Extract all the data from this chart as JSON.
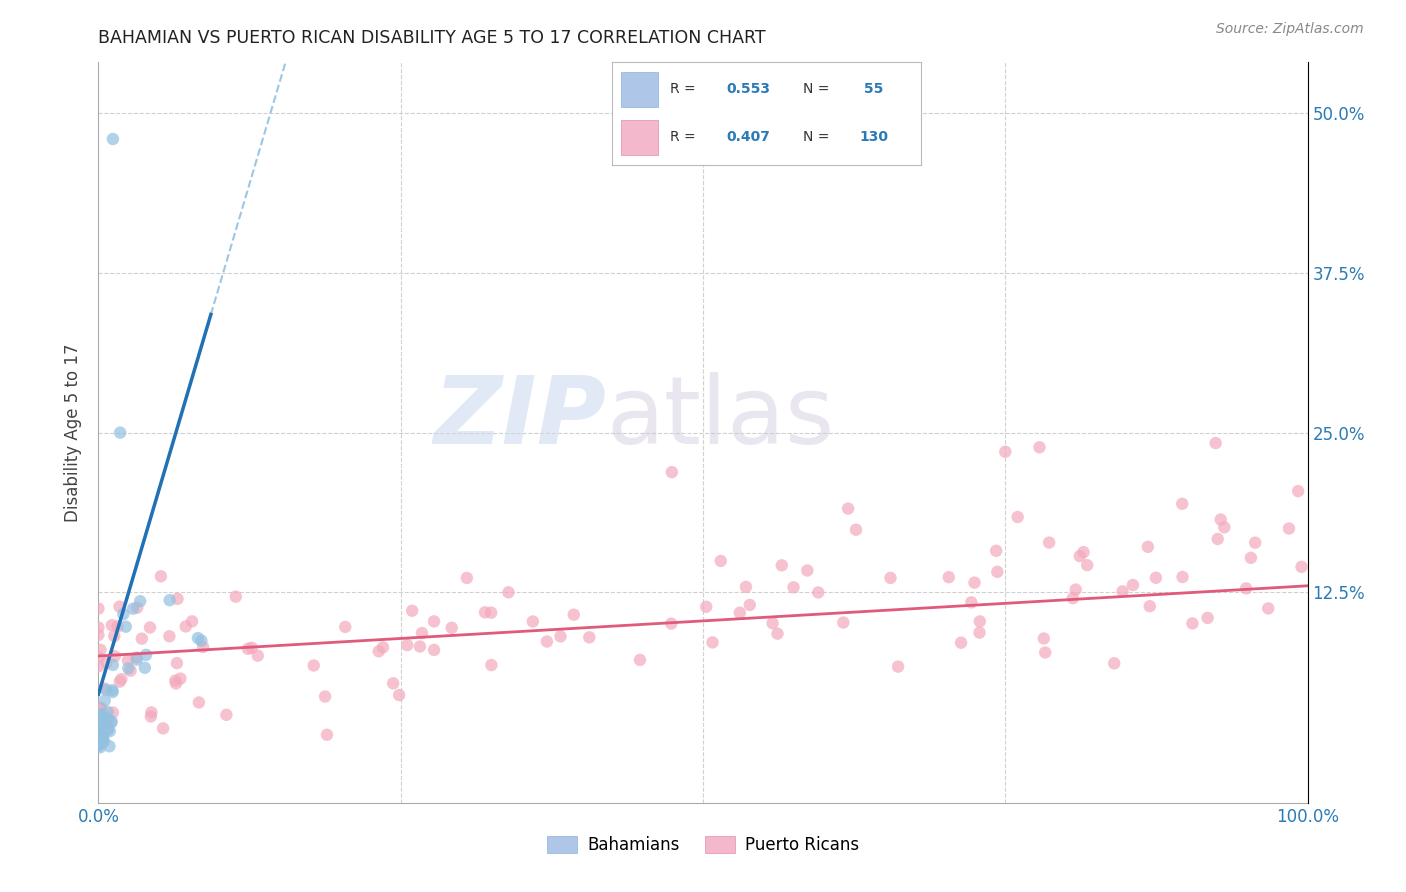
{
  "title": "BAHAMIAN VS PUERTO RICAN DISABILITY AGE 5 TO 17 CORRELATION CHART",
  "source": "Source: ZipAtlas.com",
  "ylabel": "Disability Age 5 to 17",
  "xlim": [
    0.0,
    1.0
  ],
  "ylim": [
    -0.04,
    0.54
  ],
  "blue_color": "#92c0e0",
  "pink_color": "#f4a8bc",
  "trendline_blue": "#2171b5",
  "trendline_pink": "#e05a7a",
  "bahamian_label": "Bahamians",
  "puerto_rican_label": "Puerto Ricans",
  "legend_R1": "0.553",
  "legend_N1": "55",
  "legend_R2": "0.407",
  "legend_N2": "130",
  "bah_slope": 3.2,
  "bah_intercept": 0.01,
  "pr_slope": 0.08,
  "pr_intercept": 0.07
}
